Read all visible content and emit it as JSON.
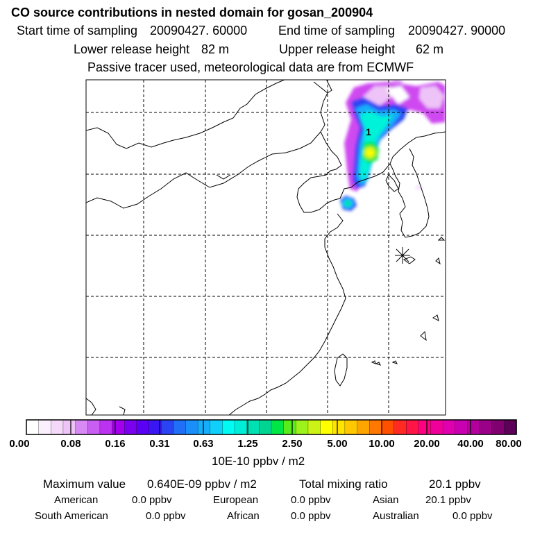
{
  "title": "CO  source contributions in nested domain for gosan_200904",
  "start_label": "Start time of sampling",
  "start_value": "20090427. 60000",
  "end_label": "End time of sampling",
  "end_value": "20090427. 90000",
  "lower_label": "Lower release height",
  "lower_value": "82 m",
  "upper_label": "Upper release height",
  "upper_value": "62 m",
  "tracer_note": "Passive tracer used, meteorological data are from ECMWF",
  "colorbar": {
    "units": "10E-10 ppbv / m2",
    "ticks": [
      "0.00",
      "0.08",
      "0.16",
      "0.31",
      "0.63",
      "1.25",
      "2.50",
      "5.00",
      "10.00",
      "20.00",
      "40.00",
      "80.00"
    ],
    "colors": [
      "#ffffff",
      "#fbeefd",
      "#f4d9fa",
      "#eec3f7",
      "#d88af4",
      "#c95ff2",
      "#bb33f0",
      "#a400ee",
      "#7b00f0",
      "#5a00f4",
      "#3a17f2",
      "#2a44f3",
      "#1f6ff7",
      "#1a8ff9",
      "#16aefa",
      "#10cffa",
      "#00fbf3",
      "#00eed7",
      "#00e1b3",
      "#00d692",
      "#00e646",
      "#57ec1a",
      "#9cf21a",
      "#cbf316",
      "#ffff00",
      "#ffe400",
      "#ffc800",
      "#ffa500",
      "#ff7800",
      "#ff5000",
      "#ff2b22",
      "#ff1646",
      "#ff0080",
      "#f0009a",
      "#e000b0",
      "#c800b2",
      "#b3009d",
      "#9a0088",
      "#810070",
      "#5c0058"
    ]
  },
  "site_marker": {
    "label": "1"
  },
  "stats": {
    "max_label": "Maximum value",
    "max_value": "0.640E-09 ppbv / m2",
    "total_label": "Total mixing ratio",
    "total_value": "20.1 ppbv"
  },
  "regions": [
    {
      "name": "American",
      "value": "0.0 ppbv"
    },
    {
      "name": "European",
      "value": "0.0 ppbv"
    },
    {
      "name": "Asian",
      "value": "20.1 ppbv"
    },
    {
      "name": "South American",
      "value": "0.0 ppbv"
    },
    {
      "name": "African",
      "value": "0.0 ppbv"
    },
    {
      "name": "Australian",
      "value": "0.0 ppbv"
    }
  ]
}
